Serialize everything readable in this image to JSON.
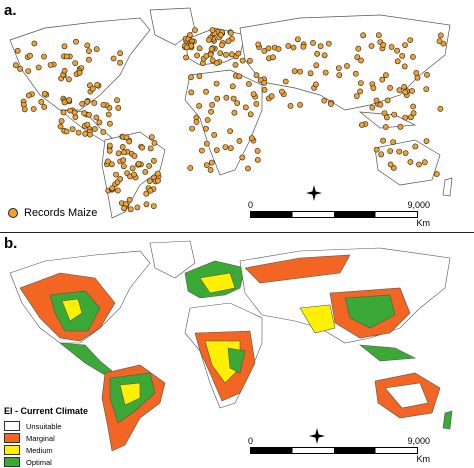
{
  "panel_a": {
    "label": "a.",
    "legend_label": "Records Maize",
    "point_color": "#f0a12e",
    "scalebar": {
      "start": "0",
      "end": "9,000",
      "unit": "Km"
    }
  },
  "panel_b": {
    "label": "b.",
    "legend_title": "EI - Current Climate",
    "legend_items": [
      {
        "label": "Unsuitable",
        "color": "#ffffff"
      },
      {
        "label": "Marginal",
        "color": "#f26522"
      },
      {
        "label": "Medium",
        "color": "#ffef00"
      },
      {
        "label": "Optimal",
        "color": "#3aa935"
      }
    ],
    "scalebar": {
      "start": "0",
      "end": "9,000",
      "unit": "Km"
    }
  },
  "map_colors": {
    "land": "#ffffff",
    "border": "#555555",
    "ocean": "#ffffff"
  },
  "icons": {
    "north_arrow": "compass-icon"
  }
}
